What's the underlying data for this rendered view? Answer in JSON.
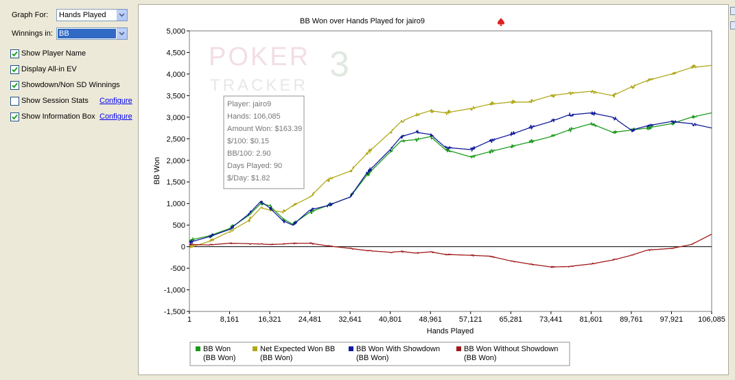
{
  "settings": {
    "graph_for_label": "Graph For:",
    "graph_for_value": "Hands Played",
    "winnings_in_label": "Winnings in:",
    "winnings_in_value": "BB",
    "options": [
      {
        "label": "Show Player Name",
        "checked": true
      },
      {
        "label": "Display All-in EV",
        "checked": true
      },
      {
        "label": "Showdown/Non SD Winnings",
        "checked": true
      },
      {
        "label": "Show Session Stats",
        "checked": false,
        "link": "Configure"
      },
      {
        "label": "Show Information Box",
        "checked": true,
        "link": "Configure"
      }
    ]
  },
  "watermark": {
    "line1": "POKER",
    "digit": "3",
    "line2": "TRACKER"
  },
  "info_box": [
    "Player: jairo9",
    "Hands: 106,085",
    "Amount Won: $163.39",
    "$/100: $0.15",
    "BB/100: 2.90",
    "Days Played: 90",
    "$/Day: $1.82"
  ],
  "chart_data": {
    "type": "line",
    "title": "BB Won over Hands Played for jairo9",
    "xlabel": "Hands Played",
    "ylabel": "BB Won",
    "xlim": [
      1,
      106085
    ],
    "ylim": [
      -1500,
      5000
    ],
    "xticks": [
      1,
      8161,
      16321,
      24481,
      32641,
      40801,
      48961,
      57121,
      65281,
      73441,
      81601,
      89761,
      97921,
      106085
    ],
    "xtick_labels": [
      "1",
      "8,161",
      "16,321",
      "24,481",
      "32,641",
      "40,801",
      "48,961",
      "57,121",
      "65,281",
      "73,441",
      "81,601",
      "89,761",
      "97,921",
      "106,085"
    ],
    "yticks": [
      -1500,
      -1000,
      -500,
      0,
      500,
      1000,
      1500,
      2000,
      2500,
      3000,
      3500,
      4000,
      4500,
      5000
    ],
    "ytick_labels": [
      "-1,500",
      "-1,000",
      "-500",
      "0",
      "500",
      "1,000",
      "1,500",
      "2,000",
      "2,500",
      "3,000",
      "3,500",
      "4,000",
      "4,500",
      "5,000"
    ],
    "grid": false,
    "legend_position": "bottom",
    "x": [
      1,
      4000,
      8161,
      12000,
      14500,
      16321,
      19000,
      21000,
      24481,
      28000,
      32641,
      36000,
      40801,
      43000,
      46000,
      48961,
      52000,
      57121,
      61000,
      65281,
      69000,
      73441,
      77000,
      81601,
      86000,
      89761,
      93000,
      97921,
      102000,
      106085
    ],
    "series": [
      {
        "name": "BB Won",
        "sublabel": "(BB Won)",
        "color": "#1a9a1a",
        "values": [
          150,
          250,
          420,
          720,
          1000,
          950,
          650,
          520,
          800,
          950,
          1150,
          1650,
          2200,
          2450,
          2480,
          2550,
          2250,
          2080,
          2200,
          2320,
          2420,
          2550,
          2700,
          2850,
          2650,
          2700,
          2750,
          2850,
          3000,
          3100
        ]
      },
      {
        "name": "Net Expected Won BB",
        "sublabel": "(BB Won)",
        "color": "#b0a818",
        "values": [
          -20,
          120,
          350,
          600,
          900,
          850,
          800,
          950,
          1150,
          1550,
          1750,
          2150,
          2650,
          2900,
          3050,
          3150,
          3100,
          3200,
          3300,
          3350,
          3350,
          3500,
          3550,
          3600,
          3500,
          3700,
          3850,
          4000,
          4150,
          4200
        ]
      },
      {
        "name": "BB Won With Showdown",
        "sublabel": "(BB Won)",
        "color": "#101a9a",
        "values": [
          100,
          230,
          400,
          750,
          1050,
          900,
          600,
          500,
          850,
          950,
          1150,
          1700,
          2250,
          2550,
          2650,
          2600,
          2300,
          2250,
          2450,
          2600,
          2750,
          2900,
          3050,
          3100,
          3000,
          2700,
          2800,
          2900,
          2850,
          2750
        ]
      },
      {
        "name": "BB Won Without Showdown",
        "sublabel": "(BB Won)",
        "color": "#a01818",
        "values": [
          50,
          40,
          80,
          70,
          60,
          50,
          60,
          80,
          80,
          20,
          -40,
          -90,
          -130,
          -110,
          -150,
          -120,
          -180,
          -200,
          -220,
          -330,
          -400,
          -470,
          -460,
          -400,
          -310,
          -200,
          -80,
          -40,
          50,
          290
        ]
      }
    ]
  }
}
